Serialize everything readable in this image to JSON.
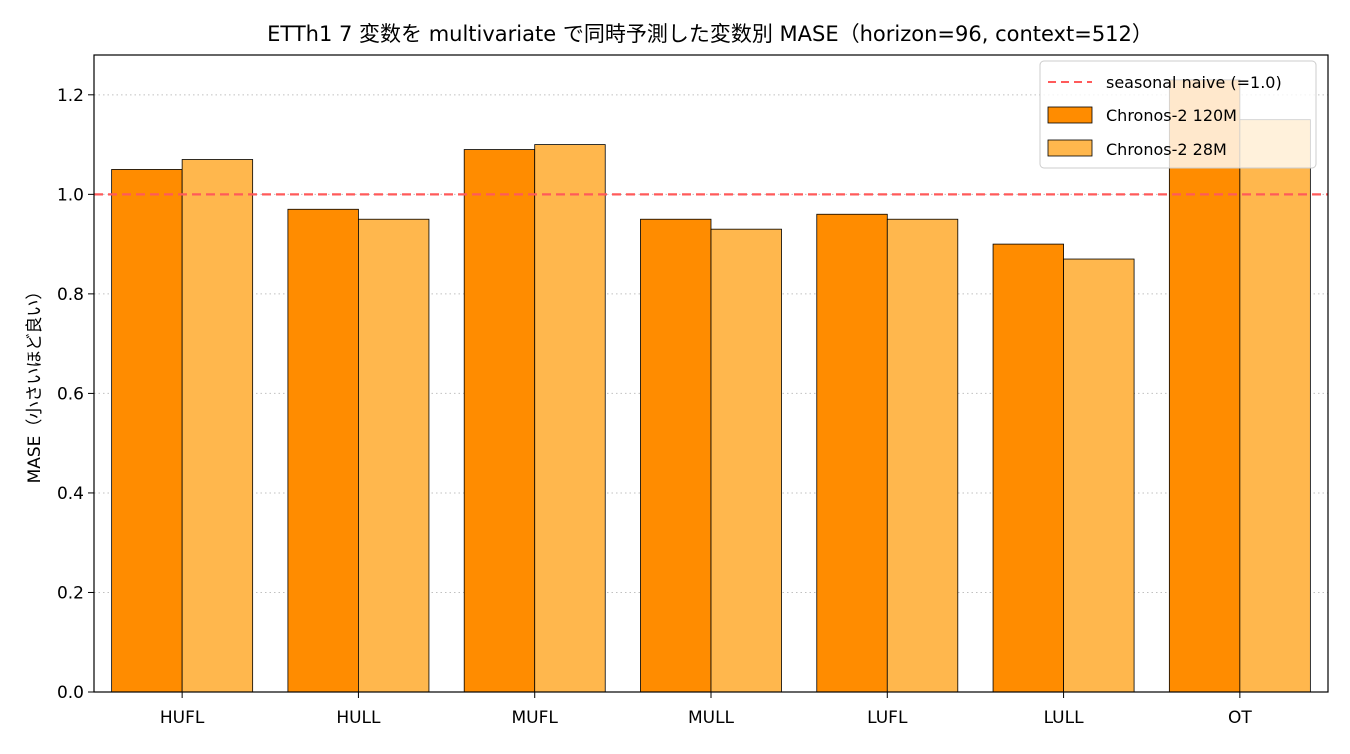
{
  "chart_data": {
    "type": "bar",
    "title": "ETTh1 7 変数を multivariate で同時予測した変数別 MASE（horizon=96, context=512）",
    "xlabel": "",
    "ylabel": "MASE（小さいほど良い）",
    "categories": [
      "HUFL",
      "HULL",
      "MUFL",
      "MULL",
      "LUFL",
      "LULL",
      "OT"
    ],
    "series": [
      {
        "name": "Chronos-2 120M",
        "color": "#ff8c00",
        "values": [
          1.05,
          0.97,
          1.09,
          0.95,
          0.96,
          0.9,
          1.23
        ]
      },
      {
        "name": "Chronos-2 28M",
        "color": "#ffb74d",
        "values": [
          1.07,
          0.95,
          1.1,
          0.93,
          0.95,
          0.87,
          1.15
        ]
      }
    ],
    "reference_line": {
      "name": "seasonal naive (=1.0)",
      "value": 1.0,
      "color": "#ff5a5a",
      "style": "dashed"
    },
    "ylim": [
      0,
      1.28
    ],
    "yticks": [
      "0.0",
      "0.2",
      "0.4",
      "0.6",
      "0.8",
      "1.0",
      "1.2"
    ],
    "grid": "y-dotted",
    "legend_position": "top-right"
  }
}
